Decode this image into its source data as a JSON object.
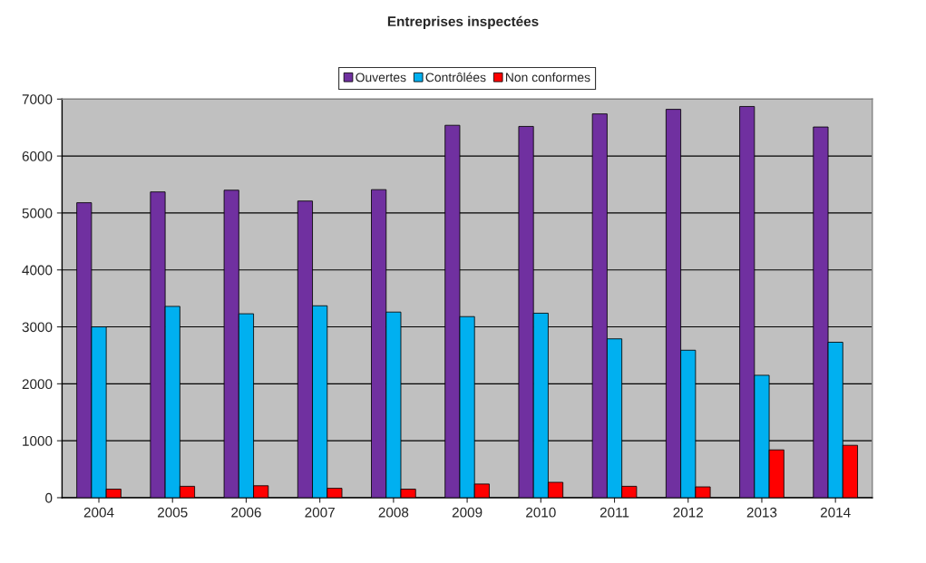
{
  "chart_data": {
    "type": "bar",
    "title": "Entreprises inspectées",
    "categories": [
      "2004",
      "2005",
      "2006",
      "2007",
      "2008",
      "2009",
      "2010",
      "2011",
      "2012",
      "2013",
      "2014"
    ],
    "series": [
      {
        "name": "Ouvertes",
        "color": "#7030a0",
        "values": [
          5180,
          5370,
          5400,
          5210,
          5410,
          6540,
          6520,
          6740,
          6820,
          6870,
          6510
        ]
      },
      {
        "name": "Contrôlées",
        "color": "#00b0f0",
        "values": [
          3000,
          3360,
          3230,
          3370,
          3260,
          3180,
          3240,
          2790,
          2590,
          2150,
          2730
        ]
      },
      {
        "name": "Non conformes",
        "color": "#ff0000",
        "values": [
          150,
          200,
          210,
          165,
          150,
          240,
          270,
          200,
          190,
          840,
          920
        ]
      }
    ],
    "ylim": [
      0,
      7000
    ],
    "yticks": [
      0,
      1000,
      2000,
      3000,
      4000,
      5000,
      6000,
      7000
    ],
    "grid": "y",
    "legend": "top"
  }
}
